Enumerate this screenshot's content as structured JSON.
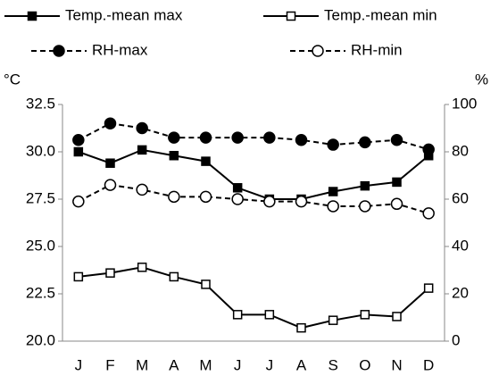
{
  "chart_data": {
    "type": "line",
    "y_unit_label": "°C",
    "y2_unit_label": "%",
    "categories": [
      "J",
      "F",
      "M",
      "A",
      "M",
      "J",
      "J",
      "A",
      "S",
      "O",
      "N",
      "D"
    ],
    "series": [
      {
        "name": "Temp.-mean max",
        "color": "#000000",
        "marker": "square",
        "filled": true,
        "dashed": false,
        "values": [
          30.0,
          29.4,
          30.1,
          29.8,
          29.5,
          28.1,
          27.5,
          27.5,
          27.9,
          28.2,
          28.4,
          29.8
        ]
      },
      {
        "name": "Temp.-mean min",
        "color": "#000000",
        "marker": "square",
        "filled": false,
        "dashed": false,
        "values": [
          23.4,
          23.6,
          23.9,
          23.4,
          23.0,
          21.4,
          21.4,
          20.7,
          21.1,
          21.4,
          21.3,
          22.8
        ]
      },
      {
        "name": "RH-max",
        "color": "#000000",
        "marker": "circle",
        "filled": true,
        "dashed": true,
        "axis": "y2",
        "values": [
          85,
          92,
          90,
          86,
          86,
          86,
          86,
          85,
          83,
          84,
          85,
          81
        ]
      },
      {
        "name": "RH-min",
        "color": "#000000",
        "marker": "circle",
        "filled": false,
        "dashed": true,
        "axis": "y2",
        "values": [
          59,
          66,
          64,
          61,
          61,
          60,
          59,
          59,
          57,
          57,
          58,
          54
        ]
      }
    ],
    "ylim": [
      20,
      32.5
    ],
    "yticks": [
      {
        "value": 20,
        "label": "20.0"
      },
      22.5,
      {
        "value": 25,
        "label": "25.0"
      },
      27.5,
      {
        "value": 30,
        "label": "30.0"
      },
      32.5
    ],
    "y2lim": [
      0,
      100
    ],
    "y2ticks": [
      0,
      20,
      40,
      60,
      80,
      100
    ],
    "grid": false
  }
}
